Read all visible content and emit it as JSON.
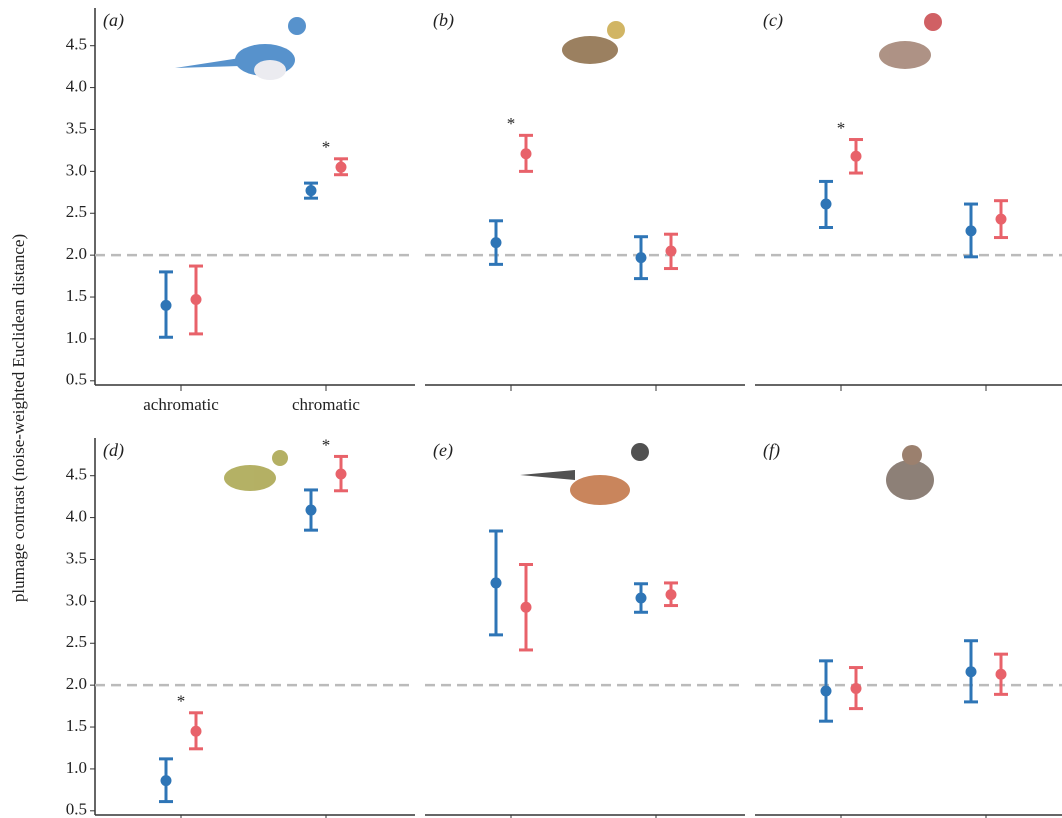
{
  "ylabel": "plumage contrast (noise-weighted Euclidean distance)",
  "chart_data": [
    {
      "type": "errorbar",
      "title": "(a)",
      "categories": [
        "achromatic",
        "chromatic"
      ],
      "ylim": [
        0.45,
        4.95
      ],
      "yticks": [
        0.5,
        {
          "value": 1.0,
          "label": "1.0"
        },
        1.5,
        {
          "value": 2.0,
          "label": "2.0"
        },
        2.5,
        {
          "value": 3.0,
          "label": "3.0"
        },
        3.5,
        {
          "value": 4.0,
          "label": "4.0"
        },
        4.5
      ],
      "hline": 2,
      "series": [
        {
          "color": "#2e75b6",
          "values": [
            1.4,
            2.77
          ],
          "lower": [
            1.02,
            2.68
          ],
          "upper": [
            1.8,
            2.86
          ]
        },
        {
          "color": "#e8626a",
          "values": [
            1.47,
            3.05
          ],
          "lower": [
            1.06,
            2.96
          ],
          "upper": [
            1.87,
            3.15
          ],
          "annotations": [
            null,
            "*"
          ]
        }
      ]
    },
    {
      "type": "errorbar",
      "title": "(b)",
      "categories": [
        null,
        null
      ],
      "ylim": [
        0.45,
        4.95
      ],
      "hline": 2,
      "series": [
        {
          "color": "#2e75b6",
          "values": [
            2.15,
            1.97
          ],
          "lower": [
            1.89,
            1.72
          ],
          "upper": [
            2.41,
            2.22
          ]
        },
        {
          "color": "#e8626a",
          "values": [
            3.21,
            2.05
          ],
          "lower": [
            3.0,
            1.84
          ],
          "upper": [
            3.43,
            2.25
          ],
          "annotations": [
            "*",
            null
          ]
        }
      ]
    },
    {
      "type": "errorbar",
      "title": "(c)",
      "categories": [
        null,
        null
      ],
      "ylim": [
        0.45,
        4.95
      ],
      "hline": 2,
      "series": [
        {
          "color": "#2e75b6",
          "values": [
            2.61,
            2.29
          ],
          "lower": [
            2.33,
            1.98
          ],
          "upper": [
            2.88,
            2.61
          ]
        },
        {
          "color": "#e8626a",
          "values": [
            3.18,
            2.43
          ],
          "lower": [
            2.98,
            2.21
          ],
          "upper": [
            3.38,
            2.65
          ],
          "annotations": [
            "*",
            null
          ]
        }
      ]
    },
    {
      "type": "errorbar",
      "title": "(d)",
      "categories": [
        null,
        null
      ],
      "ylim": [
        0.45,
        4.95
      ],
      "yticks": [
        0.5,
        {
          "value": 1.0,
          "label": "1.0"
        },
        1.5,
        {
          "value": 2.0,
          "label": "2.0"
        },
        2.5,
        {
          "value": 3.0,
          "label": "3.0"
        },
        3.5,
        {
          "value": 4.0,
          "label": "4.0"
        },
        4.5
      ],
      "hline": 2,
      "series": [
        {
          "color": "#2e75b6",
          "values": [
            0.86,
            4.09
          ],
          "lower": [
            0.61,
            3.85
          ],
          "upper": [
            1.12,
            4.33
          ]
        },
        {
          "color": "#e8626a",
          "values": [
            1.45,
            4.52
          ],
          "lower": [
            1.24,
            4.32
          ],
          "upper": [
            1.67,
            4.73
          ],
          "annotations": [
            "*",
            "*"
          ]
        }
      ]
    },
    {
      "type": "errorbar",
      "title": "(e)",
      "categories": [
        null,
        null
      ],
      "ylim": [
        0.45,
        4.95
      ],
      "hline": 2,
      "series": [
        {
          "color": "#2e75b6",
          "values": [
            3.22,
            3.04
          ],
          "lower": [
            2.6,
            2.87
          ],
          "upper": [
            3.84,
            3.21
          ]
        },
        {
          "color": "#e8626a",
          "values": [
            2.93,
            3.08
          ],
          "lower": [
            2.42,
            2.95
          ],
          "upper": [
            3.44,
            3.22
          ]
        }
      ]
    },
    {
      "type": "errorbar",
      "title": "(f)",
      "categories": [
        null,
        null
      ],
      "ylim": [
        0.45,
        4.95
      ],
      "hline": 2,
      "series": [
        {
          "color": "#2e75b6",
          "values": [
            1.93,
            2.16
          ],
          "lower": [
            1.57,
            1.8
          ],
          "upper": [
            2.29,
            2.53
          ]
        },
        {
          "color": "#e8626a",
          "values": [
            1.96,
            2.13
          ],
          "lower": [
            1.72,
            1.89
          ],
          "upper": [
            2.21,
            2.37
          ]
        }
      ]
    }
  ]
}
